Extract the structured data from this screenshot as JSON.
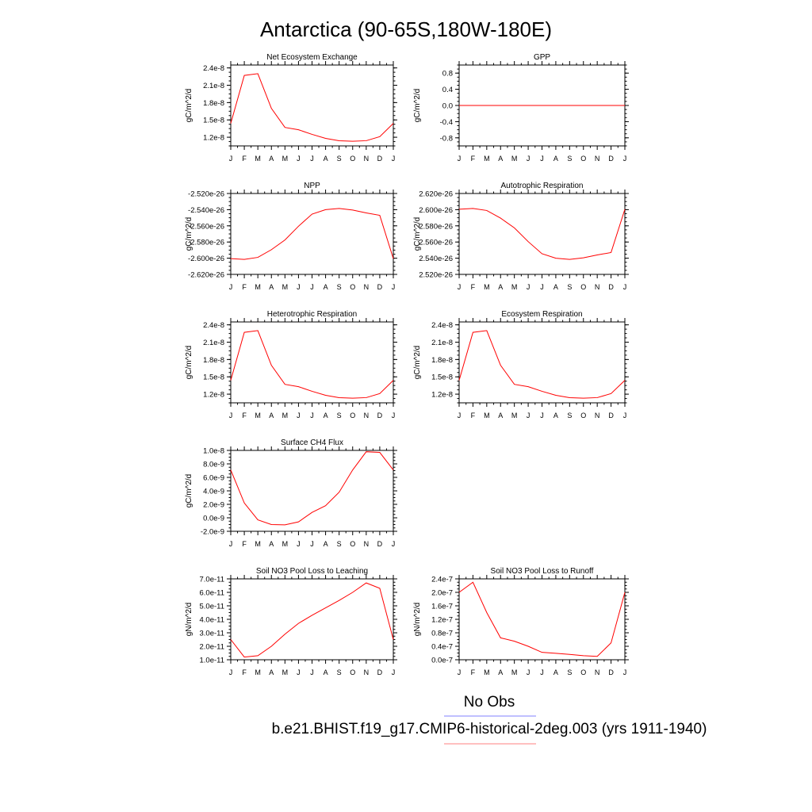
{
  "title": "Antarctica (90-65S,180W-180E)",
  "month_labels": [
    "J",
    "F",
    "M",
    "A",
    "M",
    "J",
    "J",
    "A",
    "S",
    "O",
    "N",
    "D",
    "J"
  ],
  "legend": {
    "entries": [
      {
        "label": "No Obs",
        "color": "#8080ff"
      },
      {
        "label": "b.e21.BHIST.f19_g17.CMIP6-historical-2deg.003 (yrs 1911-1940)",
        "color": "#ff8080"
      }
    ]
  },
  "series_color": "#ff0000",
  "chart_data": [
    {
      "type": "line",
      "title": "Net Ecosystem Exchange",
      "ylabel": "gC/m^2/d",
      "ylim": [
        1.05e-08,
        2.45e-08
      ],
      "yticks": [
        1.2e-08,
        1.5e-08,
        1.8e-08,
        2.1e-08,
        2.4e-08
      ],
      "ytick_labels": [
        "1.2e-8",
        "1.5e-8",
        "1.8e-8",
        "2.1e-8",
        "2.4e-8"
      ],
      "x": [
        "J",
        "F",
        "M",
        "A",
        "M",
        "J",
        "J",
        "A",
        "S",
        "O",
        "N",
        "D",
        "J"
      ],
      "values": [
        1.44e-08,
        2.27e-08,
        2.3e-08,
        1.7e-08,
        1.37e-08,
        1.33e-08,
        1.25e-08,
        1.18e-08,
        1.14e-08,
        1.13e-08,
        1.14e-08,
        1.21e-08,
        1.44e-08
      ]
    },
    {
      "type": "line",
      "title": "GPP",
      "ylabel": "gC/m^2/d",
      "ylim": [
        -1.0,
        1.0
      ],
      "yticks": [
        -0.8,
        -0.4,
        0.0,
        0.4,
        0.8
      ],
      "ytick_labels": [
        "-0.8",
        "-0.4",
        "0.0",
        "0.4",
        "0.8"
      ],
      "x": [
        "J",
        "F",
        "M",
        "A",
        "M",
        "J",
        "J",
        "A",
        "S",
        "O",
        "N",
        "D",
        "J"
      ],
      "values": [
        0,
        0,
        0,
        0,
        0,
        0,
        0,
        0,
        0,
        0,
        0,
        0,
        0
      ]
    },
    {
      "type": "line",
      "title": "NPP",
      "ylabel": "gC/m^2/d",
      "ylim": [
        -2.62e-26,
        -2.52e-26
      ],
      "yticks": [
        -2.62e-26,
        -2.6e-26,
        -2.58e-26,
        -2.56e-26,
        -2.54e-26,
        -2.52e-26
      ],
      "ytick_labels": [
        "-2.620e-26",
        "-2.600e-26",
        "-2.580e-26",
        "-2.560e-26",
        "-2.540e-26",
        "-2.520e-26"
      ],
      "x": [
        "J",
        "F",
        "M",
        "A",
        "M",
        "J",
        "J",
        "A",
        "S",
        "O",
        "N",
        "D",
        "J"
      ],
      "values": [
        -2.6005e-26,
        -2.6015e-26,
        -2.599e-26,
        -2.5895e-26,
        -2.5775e-26,
        -2.5605e-26,
        -2.5455e-26,
        -2.54e-26,
        -2.5385e-26,
        -2.5405e-26,
        -2.544e-26,
        -2.547e-26,
        -2.6005e-26
      ]
    },
    {
      "type": "line",
      "title": "Autotrophic Respiration",
      "ylabel": "gC/m^2/d",
      "ylim": [
        2.52e-26,
        2.62e-26
      ],
      "yticks": [
        2.52e-26,
        2.54e-26,
        2.56e-26,
        2.58e-26,
        2.6e-26,
        2.62e-26
      ],
      "ytick_labels": [
        "2.520e-26",
        "2.540e-26",
        "2.560e-26",
        "2.580e-26",
        "2.600e-26",
        "2.620e-26"
      ],
      "x": [
        "J",
        "F",
        "M",
        "A",
        "M",
        "J",
        "J",
        "A",
        "S",
        "O",
        "N",
        "D",
        "J"
      ],
      "values": [
        2.6005e-26,
        2.6015e-26,
        2.599e-26,
        2.5895e-26,
        2.5775e-26,
        2.5605e-26,
        2.5455e-26,
        2.54e-26,
        2.5385e-26,
        2.5405e-26,
        2.544e-26,
        2.547e-26,
        2.6005e-26
      ]
    },
    {
      "type": "line",
      "title": "Heterotrophic Respiration",
      "ylabel": "gC/m^2/d",
      "ylim": [
        1.05e-08,
        2.45e-08
      ],
      "yticks": [
        1.2e-08,
        1.5e-08,
        1.8e-08,
        2.1e-08,
        2.4e-08
      ],
      "ytick_labels": [
        "1.2e-8",
        "1.5e-8",
        "1.8e-8",
        "2.1e-8",
        "2.4e-8"
      ],
      "x": [
        "J",
        "F",
        "M",
        "A",
        "M",
        "J",
        "J",
        "A",
        "S",
        "O",
        "N",
        "D",
        "J"
      ],
      "values": [
        1.44e-08,
        2.27e-08,
        2.3e-08,
        1.7e-08,
        1.37e-08,
        1.33e-08,
        1.25e-08,
        1.18e-08,
        1.14e-08,
        1.13e-08,
        1.14e-08,
        1.21e-08,
        1.44e-08
      ]
    },
    {
      "type": "line",
      "title": "Ecosystem Respiration",
      "ylabel": "gC/m^2/d",
      "ylim": [
        1.05e-08,
        2.45e-08
      ],
      "yticks": [
        1.2e-08,
        1.5e-08,
        1.8e-08,
        2.1e-08,
        2.4e-08
      ],
      "ytick_labels": [
        "1.2e-8",
        "1.5e-8",
        "1.8e-8",
        "2.1e-8",
        "2.4e-8"
      ],
      "x": [
        "J",
        "F",
        "M",
        "A",
        "M",
        "J",
        "J",
        "A",
        "S",
        "O",
        "N",
        "D",
        "J"
      ],
      "values": [
        1.44e-08,
        2.27e-08,
        2.3e-08,
        1.7e-08,
        1.37e-08,
        1.33e-08,
        1.25e-08,
        1.18e-08,
        1.14e-08,
        1.13e-08,
        1.14e-08,
        1.21e-08,
        1.44e-08
      ]
    },
    {
      "type": "line",
      "title": "Surface CH4 Flux",
      "ylabel": "gC/m^2/d",
      "ylim": [
        -2e-09,
        1e-08
      ],
      "yticks": [
        -2e-09,
        0.0,
        2e-09,
        4e-09,
        6e-09,
        8e-09,
        1e-08
      ],
      "ytick_labels": [
        "-2.0e-9",
        "0.0e-9",
        "2.0e-9",
        "4.0e-9",
        "6.0e-9",
        "8.0e-9",
        "1.0e-8"
      ],
      "x": [
        "J",
        "F",
        "M",
        "A",
        "M",
        "J",
        "J",
        "A",
        "S",
        "O",
        "N",
        "D",
        "J"
      ],
      "values": [
        7.1e-09,
        2.2e-09,
        -3e-10,
        -1e-09,
        -1.05e-09,
        -6e-10,
        8e-10,
        1.8e-09,
        3.8e-09,
        7.1e-09,
        9.8e-09,
        9.7e-09,
        7.1e-09
      ]
    },
    {
      "type": "line",
      "title": "Soil NO3 Pool Loss to Leaching",
      "ylabel": "gN/m^2/d",
      "ylim": [
        1e-11,
        7e-11
      ],
      "yticks": [
        1e-11,
        2e-11,
        3e-11,
        4e-11,
        5e-11,
        6e-11,
        7e-11
      ],
      "ytick_labels": [
        "1.0e-11",
        "2.0e-11",
        "3.0e-11",
        "4.0e-11",
        "5.0e-11",
        "6.0e-11",
        "7.0e-11"
      ],
      "x": [
        "J",
        "F",
        "M",
        "A",
        "M",
        "J",
        "J",
        "A",
        "S",
        "O",
        "N",
        "D",
        "J"
      ],
      "values": [
        2.5e-11,
        1.2e-11,
        1.3e-11,
        2e-11,
        2.9e-11,
        3.7e-11,
        4.3e-11,
        4.85e-11,
        5.4e-11,
        6e-11,
        6.7e-11,
        6.3e-11,
        2.5e-11
      ]
    },
    {
      "type": "line",
      "title": "Soil NO3 Pool Loss to Runoff",
      "ylabel": "gN/m^2/d",
      "ylim": [
        0.0,
        2.4e-07
      ],
      "yticks": [
        0.0,
        4e-08,
        8e-08,
        1.2e-07,
        1.6e-07,
        2e-07,
        2.4e-07
      ],
      "ytick_labels": [
        "0.0e-7",
        "0.4e-7",
        "0.8e-7",
        "1.2e-7",
        "1.6e-7",
        "2.0e-7",
        "2.4e-7"
      ],
      "x": [
        "J",
        "F",
        "M",
        "A",
        "M",
        "J",
        "J",
        "A",
        "S",
        "O",
        "N",
        "D",
        "J"
      ],
      "values": [
        2e-07,
        2.3e-07,
        1.4e-07,
        6.5e-08,
        5.5e-08,
        4e-08,
        2.2e-08,
        1.9e-08,
        1.6e-08,
        1.2e-08,
        1e-08,
        5e-08,
        2e-07
      ]
    }
  ]
}
